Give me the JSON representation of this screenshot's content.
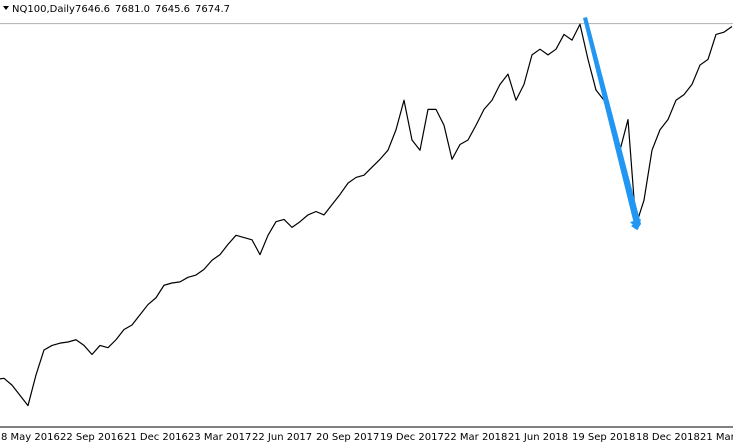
{
  "chart_data": {
    "type": "line",
    "title": "NQ100,Daily",
    "ohlc": {
      "values": [
        7646.6,
        7681.0,
        7645.6,
        7674.7
      ],
      "value_labels": [
        "7646.6",
        "7681.0",
        "7645.6",
        "7674.7"
      ]
    },
    "color": "#000000",
    "categories": [
      "8 May 2016",
      null,
      null,
      null,
      null,
      null,
      null,
      null,
      "22 Sep 2016",
      null,
      null,
      null,
      null,
      null,
      null,
      null,
      "21 Dec 2016",
      null,
      null,
      null,
      null,
      null,
      null,
      null,
      "23 Mar 2017",
      null,
      null,
      null,
      null,
      null,
      null,
      null,
      "22 Jun 2017",
      null,
      null,
      null,
      null,
      null,
      null,
      null,
      "20 Sep 2017",
      null,
      null,
      null,
      null,
      null,
      null,
      null,
      "19 Dec 2017",
      null,
      null,
      null,
      null,
      null,
      null,
      null,
      "22 Mar 2018",
      null,
      null,
      null,
      null,
      null,
      null,
      null,
      "21 Jun 2018",
      null,
      null,
      null,
      null,
      null,
      null,
      null,
      "19 Sep 2018",
      null,
      null,
      null,
      null,
      null,
      null,
      null,
      "18 Dec 2018",
      null,
      null,
      null,
      null,
      null,
      null,
      null,
      "21 Mar",
      null,
      null,
      null,
      null
    ],
    "values": [
      4540,
      4550,
      4490,
      4400,
      4310,
      4580,
      4800,
      4840,
      4860,
      4870,
      4890,
      4840,
      4760,
      4840,
      4820,
      4890,
      4980,
      5020,
      5110,
      5200,
      5260,
      5370,
      5390,
      5400,
      5440,
      5460,
      5510,
      5590,
      5640,
      5730,
      5810,
      5790,
      5770,
      5640,
      5810,
      5930,
      5950,
      5880,
      5930,
      5990,
      6020,
      5990,
      6080,
      6170,
      6270,
      6320,
      6340,
      6410,
      6480,
      6560,
      6740,
      7000,
      6650,
      6560,
      6920,
      6920,
      6780,
      6480,
      6610,
      6650,
      6780,
      6920,
      7000,
      7140,
      7230,
      7000,
      7140,
      7400,
      7450,
      7400,
      7450,
      7580,
      7530,
      7670,
      7360,
      7090,
      7000,
      6740,
      6560,
      6830,
      5900,
      6120,
      6560,
      6740,
      6830,
      7000,
      7050,
      7140,
      7310,
      7360,
      7580,
      7600,
      7650
    ],
    "ylim": [
      4130,
      7760
    ]
  }
}
